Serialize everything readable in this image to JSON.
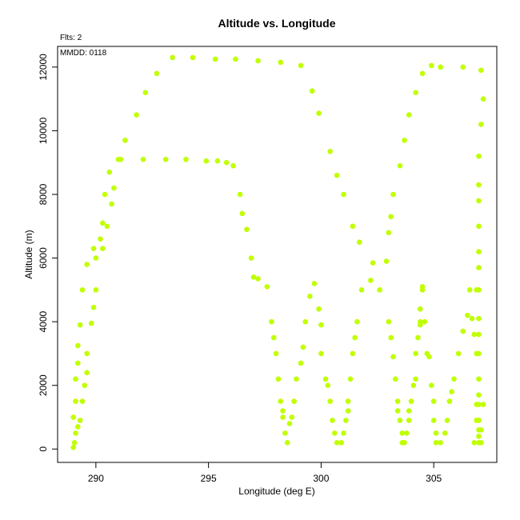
{
  "chart_data": {
    "type": "scatter",
    "title": "Altitude vs. Longitude",
    "xlabel": "Longitude (deg E)",
    "ylabel": "Altitude (m)",
    "annotations": [
      "Flts: 2",
      "MMDD: 0118"
    ],
    "xlim": [
      288.3,
      307.8
    ],
    "ylim": [
      -420,
      12650
    ],
    "x_ticks": [
      290,
      295,
      300,
      305
    ],
    "y_ticks": [
      0,
      2000,
      4000,
      6000,
      8000,
      10000,
      12000
    ],
    "grid": false,
    "legend": "none",
    "point_color": "#c0ff00",
    "points": [
      [
        289.0,
        50
      ],
      [
        289.05,
        200
      ],
      [
        289.1,
        500
      ],
      [
        289.2,
        700
      ],
      [
        289.0,
        1000
      ],
      [
        289.3,
        900
      ],
      [
        289.1,
        1500
      ],
      [
        289.4,
        1500
      ],
      [
        289.1,
        2200
      ],
      [
        289.5,
        2000
      ],
      [
        289.2,
        2700
      ],
      [
        289.6,
        2400
      ],
      [
        289.2,
        3250
      ],
      [
        289.6,
        3000
      ],
      [
        289.3,
        3900
      ],
      [
        289.8,
        3950
      ],
      [
        289.4,
        5000
      ],
      [
        289.9,
        4450
      ],
      [
        290.0,
        5000
      ],
      [
        289.6,
        5800
      ],
      [
        290.0,
        6000
      ],
      [
        289.9,
        6300
      ],
      [
        290.2,
        6600
      ],
      [
        290.3,
        6300
      ],
      [
        290.3,
        7100
      ],
      [
        290.5,
        7000
      ],
      [
        290.4,
        8000
      ],
      [
        290.7,
        7700
      ],
      [
        290.6,
        8700
      ],
      [
        290.8,
        8200
      ],
      [
        291.1,
        9100
      ],
      [
        291.3,
        9700
      ],
      [
        291.8,
        10500
      ],
      [
        292.2,
        11200
      ],
      [
        292.7,
        11800
      ],
      [
        293.4,
        12300
      ],
      [
        294.3,
        12300
      ],
      [
        295.3,
        12250
      ],
      [
        296.2,
        12250
      ],
      [
        297.2,
        12200
      ],
      [
        298.2,
        12150
      ],
      [
        299.1,
        12050
      ],
      [
        299.6,
        11250
      ],
      [
        299.9,
        10550
      ],
      [
        300.4,
        9350
      ],
      [
        300.7,
        8600
      ],
      [
        301.0,
        8000
      ],
      [
        301.4,
        7000
      ],
      [
        301.7,
        6500
      ],
      [
        301.8,
        5000
      ],
      [
        302.2,
        5300
      ],
      [
        302.3,
        5850
      ],
      [
        302.6,
        5000
      ],
      [
        302.9,
        5900
      ],
      [
        303.0,
        6800
      ],
      [
        303.1,
        7300
      ],
      [
        303.2,
        8000
      ],
      [
        303.5,
        8900
      ],
      [
        303.7,
        9700
      ],
      [
        303.9,
        10500
      ],
      [
        304.2,
        11200
      ],
      [
        304.5,
        11800
      ],
      [
        304.9,
        12050
      ],
      [
        305.3,
        12000
      ],
      [
        306.3,
        12000
      ],
      [
        307.1,
        11900
      ],
      [
        307.2,
        11000
      ],
      [
        307.1,
        10200
      ],
      [
        307.0,
        9200
      ],
      [
        307.0,
        8300
      ],
      [
        307.0,
        7800
      ],
      [
        307.0,
        7000
      ],
      [
        307.0,
        6200
      ],
      [
        307.0,
        5700
      ],
      [
        307.0,
        5000
      ],
      [
        307.0,
        4100
      ],
      [
        307.0,
        3600
      ],
      [
        307.0,
        3000
      ],
      [
        307.0,
        2200
      ],
      [
        307.0,
        1700
      ],
      [
        307.0,
        1400
      ],
      [
        307.0,
        900
      ],
      [
        307.0,
        600
      ],
      [
        307.0,
        400
      ],
      [
        307.0,
        200
      ],
      [
        306.9,
        1400
      ],
      [
        307.2,
        1400
      ],
      [
        306.9,
        900
      ],
      [
        307.1,
        600
      ],
      [
        306.8,
        3600
      ],
      [
        306.7,
        4100
      ],
      [
        306.9,
        3000
      ],
      [
        306.8,
        200
      ],
      [
        307.1,
        200
      ],
      [
        291.0,
        9100
      ],
      [
        292.1,
        9100
      ],
      [
        293.1,
        9100
      ],
      [
        294.0,
        9100
      ],
      [
        294.9,
        9050
      ],
      [
        295.4,
        9050
      ],
      [
        295.8,
        9000
      ],
      [
        296.1,
        8900
      ],
      [
        296.4,
        8000
      ],
      [
        296.5,
        7400
      ],
      [
        296.7,
        6900
      ],
      [
        296.9,
        6000
      ],
      [
        297.0,
        5400
      ],
      [
        297.2,
        5350
      ],
      [
        297.6,
        5100
      ],
      [
        297.8,
        4000
      ],
      [
        297.9,
        3500
      ],
      [
        298.0,
        3000
      ],
      [
        298.1,
        2200
      ],
      [
        298.2,
        1500
      ],
      [
        298.3,
        1200
      ],
      [
        298.3,
        1000
      ],
      [
        298.4,
        500
      ],
      [
        298.5,
        200
      ],
      [
        298.6,
        800
      ],
      [
        298.7,
        1000
      ],
      [
        298.8,
        1500
      ],
      [
        298.9,
        2200
      ],
      [
        299.1,
        2700
      ],
      [
        299.2,
        3200
      ],
      [
        299.3,
        4000
      ],
      [
        299.5,
        4800
      ],
      [
        299.7,
        5200
      ],
      [
        299.9,
        4400
      ],
      [
        300.0,
        3900
      ],
      [
        300.0,
        3000
      ],
      [
        300.2,
        2200
      ],
      [
        300.3,
        2000
      ],
      [
        300.4,
        1500
      ],
      [
        300.5,
        900
      ],
      [
        300.6,
        500
      ],
      [
        300.7,
        200
      ],
      [
        300.9,
        200
      ],
      [
        301.0,
        500
      ],
      [
        301.1,
        900
      ],
      [
        301.2,
        1200
      ],
      [
        301.2,
        1500
      ],
      [
        301.3,
        2200
      ],
      [
        301.4,
        3000
      ],
      [
        301.5,
        3500
      ],
      [
        301.6,
        4000
      ],
      [
        303.0,
        4000
      ],
      [
        303.1,
        3500
      ],
      [
        303.2,
        2900
      ],
      [
        303.3,
        2200
      ],
      [
        303.4,
        1500
      ],
      [
        303.4,
        1200
      ],
      [
        303.5,
        900
      ],
      [
        303.6,
        500
      ],
      [
        303.6,
        200
      ],
      [
        303.7,
        200
      ],
      [
        303.8,
        500
      ],
      [
        303.9,
        900
      ],
      [
        303.9,
        1200
      ],
      [
        304.0,
        1500
      ],
      [
        304.1,
        2000
      ],
      [
        304.2,
        2200
      ],
      [
        304.2,
        3000
      ],
      [
        304.3,
        3500
      ],
      [
        304.4,
        3900
      ],
      [
        304.4,
        4000
      ],
      [
        304.4,
        4400
      ],
      [
        304.5,
        5000
      ],
      [
        304.5,
        5100
      ],
      [
        304.6,
        4000
      ],
      [
        304.7,
        3000
      ],
      [
        304.8,
        2900
      ],
      [
        304.9,
        2000
      ],
      [
        305.0,
        1500
      ],
      [
        305.0,
        900
      ],
      [
        305.1,
        500
      ],
      [
        305.1,
        200
      ],
      [
        305.3,
        200
      ],
      [
        305.5,
        500
      ],
      [
        305.6,
        900
      ],
      [
        305.7,
        1500
      ],
      [
        305.8,
        1800
      ],
      [
        305.9,
        2200
      ],
      [
        306.1,
        3000
      ],
      [
        306.3,
        3700
      ],
      [
        306.5,
        4200
      ],
      [
        306.6,
        5000
      ],
      [
        306.9,
        5000
      ]
    ]
  }
}
